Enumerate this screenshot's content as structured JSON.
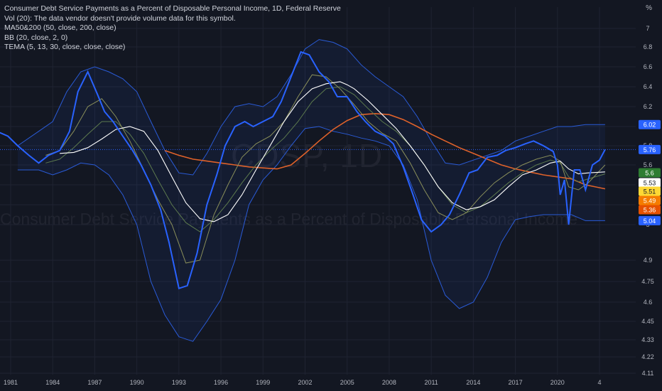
{
  "legend": {
    "title": "Consumer Debt Service Payments as a Percent of Disposable Personal Income, 1D, Federal Reserve",
    "lines": [
      "Vol (20): The data vendor doesn't provide volume data for this symbol.",
      "MA50&200 (50, close, 200, close)",
      "BB (20, close, 2, 0)",
      "TEMA (5, 13, 30, close, close, close)"
    ]
  },
  "unit": "%",
  "watermark": {
    "ticker": "CDSP, 1D",
    "description": "Consumer Debt Service Payments as a Percent of Disposable Personal Income"
  },
  "colors": {
    "background": "#131722",
    "price": "#2962ff",
    "bb_band": "#2a5bd7",
    "bb_fill": "rgba(41,98,255,0.07)",
    "ma50": "#ffffff",
    "ma200": "#e0622a",
    "tema_fast": "#8a8f5a",
    "tema_slow": "#5d7a4e",
    "last_price_line": "#2962ff"
  },
  "chart_data": {
    "type": "line",
    "x_unit": "year",
    "y_unit": "%",
    "ylim": [
      4.11,
      7.15
    ],
    "xlim": [
      1981.0,
      2025.2
    ],
    "x_ticks": [
      "1981",
      "1984",
      "1987",
      "1990",
      "1993",
      "1996",
      "1999",
      "2002",
      "2005",
      "2008",
      "2011",
      "2014",
      "2017",
      "2020",
      "4"
    ],
    "x_tick_values": [
      1981,
      1984,
      1987,
      1990,
      1993,
      1996,
      1999,
      2002,
      2005,
      2008,
      2011,
      2014,
      2017,
      2020,
      2023
    ],
    "y_ticks": [
      "7",
      "6.8",
      "6.6",
      "6.4",
      "6.2",
      "6",
      "5.8",
      "5.6",
      "5.4",
      "5.2",
      "5",
      "4.9",
      "4.75",
      "4.6",
      "4.45",
      "4.33",
      "4.22",
      "4.11"
    ],
    "y_tick_values": [
      7,
      6.8,
      6.6,
      6.4,
      6.2,
      6,
      5.8,
      5.6,
      5.4,
      5.2,
      5,
      4.9,
      4.75,
      4.6,
      4.45,
      4.33,
      4.22,
      4.11
    ],
    "series": [
      {
        "name": "CDSP",
        "role": "price",
        "x": [
          1980.0,
          1980.8,
          1981.5,
          1982.3,
          1983.0,
          1983.7,
          1984.5,
          1985.2,
          1985.8,
          1986.5,
          1987.2,
          1987.7,
          1988.3,
          1989.0,
          1989.7,
          1990.3,
          1991.0,
          1991.7,
          1992.3,
          1993.0,
          1993.6,
          1994.3,
          1995.0,
          1995.7,
          1996.3,
          1997.0,
          1997.7,
          1998.3,
          1999.0,
          1999.7,
          2000.3,
          2001.0,
          2001.7,
          2002.3,
          2003.0,
          2003.7,
          2004.3,
          2005.0,
          2005.7,
          2006.3,
          2007.0,
          2007.7,
          2008.3,
          2009.0,
          2009.7,
          2010.3,
          2011.0,
          2011.7,
          2012.3,
          2013.0,
          2013.7,
          2014.3,
          2015.0,
          2015.7,
          2016.3,
          2017.0,
          2017.7,
          2018.3,
          2019.0,
          2019.7,
          2020.0,
          2020.2,
          2020.5,
          2020.8,
          2021.2,
          2021.6,
          2022.0,
          2022.5,
          2023.0,
          2023.4
        ],
        "y": [
          5.95,
          5.9,
          5.8,
          5.7,
          5.62,
          5.7,
          5.75,
          5.95,
          6.35,
          6.55,
          6.32,
          6.15,
          6.05,
          5.9,
          5.75,
          5.6,
          5.4,
          5.15,
          4.95,
          4.7,
          4.72,
          4.92,
          5.2,
          5.5,
          5.8,
          6.0,
          6.05,
          6.0,
          6.05,
          6.1,
          6.25,
          6.5,
          6.75,
          6.72,
          6.55,
          6.45,
          6.3,
          6.3,
          6.15,
          6.05,
          5.95,
          5.9,
          5.82,
          5.58,
          5.3,
          5.05,
          4.98,
          5.0,
          5.1,
          5.3,
          5.52,
          5.55,
          5.68,
          5.7,
          5.75,
          5.78,
          5.82,
          5.85,
          5.8,
          5.74,
          5.6,
          5.3,
          5.45,
          5.0,
          5.55,
          5.55,
          5.35,
          5.6,
          5.65,
          5.76
        ]
      },
      {
        "name": "BB Upper",
        "role": "band_upper",
        "x": [
          1981.5,
          1983.0,
          1984.0,
          1985.0,
          1986.0,
          1987.0,
          1988.0,
          1989.0,
          1990.0,
          1991.0,
          1992.0,
          1993.0,
          1994.0,
          1995.0,
          1996.0,
          1997.0,
          1998.0,
          1999.0,
          2000.0,
          2001.0,
          2002.0,
          2003.0,
          2004.0,
          2005.0,
          2006.0,
          2007.0,
          2008.0,
          2009.0,
          2010.0,
          2011.0,
          2012.0,
          2013.0,
          2014.0,
          2015.0,
          2016.0,
          2017.0,
          2018.0,
          2019.0,
          2020.0,
          2021.0,
          2022.0,
          2023.4
        ],
        "y": [
          5.8,
          5.95,
          6.05,
          6.35,
          6.55,
          6.6,
          6.55,
          6.48,
          6.35,
          6.05,
          5.75,
          5.52,
          5.5,
          5.72,
          6.0,
          6.2,
          6.23,
          6.2,
          6.3,
          6.52,
          6.78,
          6.88,
          6.85,
          6.78,
          6.62,
          6.5,
          6.4,
          6.3,
          6.1,
          5.85,
          5.62,
          5.6,
          5.65,
          5.7,
          5.75,
          5.85,
          5.9,
          5.95,
          6.0,
          6.0,
          6.02,
          6.02
        ]
      },
      {
        "name": "BB Lower",
        "role": "band_lower",
        "x": [
          1981.5,
          1983.0,
          1984.0,
          1985.0,
          1986.0,
          1987.0,
          1988.0,
          1989.0,
          1990.0,
          1991.0,
          1992.0,
          1993.0,
          1994.0,
          1995.0,
          1996.0,
          1997.0,
          1998.0,
          1999.0,
          2000.0,
          2001.0,
          2002.0,
          2003.0,
          2004.0,
          2005.0,
          2006.0,
          2007.0,
          2008.0,
          2009.0,
          2010.0,
          2011.0,
          2012.0,
          2013.0,
          2014.0,
          2015.0,
          2016.0,
          2017.0,
          2018.0,
          2019.0,
          2020.0,
          2021.0,
          2022.0,
          2023.4
        ],
        "y": [
          5.55,
          5.55,
          5.5,
          5.55,
          5.62,
          5.6,
          5.5,
          5.3,
          5.0,
          4.75,
          4.5,
          4.35,
          4.32,
          4.45,
          4.62,
          4.9,
          5.2,
          5.45,
          5.6,
          5.8,
          5.98,
          6.0,
          5.95,
          5.92,
          5.88,
          5.85,
          5.8,
          5.6,
          5.25,
          4.9,
          4.65,
          4.55,
          4.6,
          4.78,
          4.95,
          5.05,
          5.08,
          5.1,
          5.1,
          5.1,
          5.04,
          5.04
        ]
      },
      {
        "name": "MA50",
        "role": "ma_fast",
        "x": [
          1984.5,
          1985.5,
          1986.5,
          1987.5,
          1988.5,
          1989.5,
          1990.5,
          1991.5,
          1992.5,
          1993.5,
          1994.5,
          1995.5,
          1996.5,
          1997.5,
          1998.5,
          1999.5,
          2000.5,
          2001.5,
          2002.5,
          2003.5,
          2004.5,
          2005.0,
          2005.5,
          2006.5,
          2007.5,
          2008.5,
          2009.5,
          2010.5,
          2011.5,
          2012.5,
          2013.5,
          2014.5,
          2015.5,
          2016.5,
          2017.5,
          2018.5,
          2019.5,
          2020.2,
          2020.8,
          2021.5,
          2022.2,
          2023.4
        ],
        "y": [
          5.72,
          5.73,
          5.78,
          5.87,
          5.97,
          6.0,
          5.95,
          5.75,
          5.48,
          5.22,
          5.06,
          5.03,
          5.1,
          5.3,
          5.55,
          5.8,
          6.05,
          6.25,
          6.38,
          6.43,
          6.45,
          6.42,
          6.38,
          6.26,
          6.12,
          5.98,
          5.8,
          5.6,
          5.38,
          5.22,
          5.15,
          5.18,
          5.25,
          5.38,
          5.5,
          5.55,
          5.62,
          5.64,
          5.56,
          5.51,
          5.52,
          5.53
        ]
      },
      {
        "name": "MA200",
        "role": "ma_slow",
        "x": [
          1992.0,
          1993.0,
          1994.0,
          1995.0,
          1996.0,
          1997.0,
          1998.0,
          1999.0,
          2000.0,
          2001.0,
          2002.0,
          2003.0,
          2004.0,
          2005.0,
          2006.0,
          2007.0,
          2008.0,
          2009.0,
          2010.0,
          2011.0,
          2012.0,
          2013.0,
          2014.0,
          2015.0,
          2016.0,
          2017.0,
          2018.0,
          2019.0,
          2020.0,
          2021.0,
          2022.0,
          2023.4
        ],
        "y": [
          5.75,
          5.7,
          5.66,
          5.64,
          5.62,
          5.6,
          5.58,
          5.57,
          5.56,
          5.6,
          5.72,
          5.85,
          5.97,
          6.06,
          6.12,
          6.13,
          6.12,
          6.07,
          6.0,
          5.92,
          5.85,
          5.78,
          5.72,
          5.66,
          5.6,
          5.56,
          5.53,
          5.5,
          5.48,
          5.46,
          5.4,
          5.36
        ]
      },
      {
        "name": "TEMA 5",
        "role": "tema_a",
        "x": [
          1983.5,
          1984.5,
          1985.5,
          1986.5,
          1987.5,
          1988.5,
          1989.5,
          1990.5,
          1991.5,
          1992.5,
          1993.5,
          1994.5,
          1995.5,
          1996.5,
          1997.5,
          1998.5,
          1999.5,
          2000.5,
          2001.5,
          2002.5,
          2003.5,
          2004.5,
          2005.5,
          2006.5,
          2007.5,
          2008.5,
          2009.5,
          2010.5,
          2011.5,
          2012.5,
          2013.5,
          2014.5,
          2015.5,
          2016.5,
          2017.5,
          2018.5,
          2019.5,
          2020.2,
          2020.8,
          2021.5,
          2022.2,
          2023.4
        ],
        "y": [
          5.7,
          5.75,
          5.95,
          6.2,
          6.28,
          6.1,
          5.85,
          5.55,
          5.25,
          5.0,
          4.88,
          4.9,
          5.1,
          5.4,
          5.68,
          5.82,
          5.9,
          6.05,
          6.3,
          6.52,
          6.5,
          6.38,
          6.22,
          6.05,
          5.93,
          5.85,
          5.62,
          5.35,
          5.12,
          5.05,
          5.12,
          5.28,
          5.42,
          5.52,
          5.6,
          5.66,
          5.7,
          5.64,
          5.38,
          5.35,
          5.42,
          5.6
        ]
      },
      {
        "name": "TEMA 13",
        "role": "tema_b",
        "x": [
          1983.5,
          1984.5,
          1985.5,
          1986.5,
          1987.5,
          1988.5,
          1989.5,
          1990.5,
          1991.5,
          1992.5,
          1993.5,
          1994.5,
          1995.5,
          1996.5,
          1997.5,
          1998.5,
          1999.5,
          2000.5,
          2001.5,
          2002.5,
          2003.5,
          2004.5,
          2005.5,
          2006.5,
          2007.5,
          2008.5,
          2009.5,
          2010.5,
          2011.5,
          2012.5,
          2013.5,
          2014.5,
          2015.5,
          2016.5,
          2017.5,
          2018.5,
          2019.5,
          2020.2,
          2020.8,
          2021.5,
          2022.2,
          2023.4
        ],
        "y": [
          5.62,
          5.66,
          5.78,
          5.92,
          6.05,
          6.05,
          5.92,
          5.72,
          5.45,
          5.2,
          5.02,
          4.98,
          5.05,
          5.22,
          5.42,
          5.6,
          5.75,
          5.88,
          6.05,
          6.25,
          6.38,
          6.4,
          6.32,
          6.18,
          6.05,
          5.95,
          5.8,
          5.6,
          5.38,
          5.2,
          5.12,
          5.18,
          5.3,
          5.42,
          5.52,
          5.6,
          5.65,
          5.62,
          5.48,
          5.43,
          5.46,
          5.51
        ]
      }
    ],
    "price_labels": [
      {
        "text": "6.02",
        "value": 6.02,
        "bg": "#2962ff",
        "fg": "#ffffff"
      },
      {
        "text": "5.76",
        "value": 5.76,
        "bg": "#2962ff",
        "fg": "#ffffff"
      },
      {
        "text": "5.6",
        "value": 5.6,
        "bg": "#2e7d32",
        "fg": "#ffffff"
      },
      {
        "text": "5.53",
        "value": 5.53,
        "bg": "#ffffff",
        "fg": "#131722"
      },
      {
        "text": "5.51",
        "value": 5.51,
        "bg": "#fdd835",
        "fg": "#131722"
      },
      {
        "text": "5.49",
        "value": 5.49,
        "bg": "#f57c00",
        "fg": "#ffffff"
      },
      {
        "text": "5.36",
        "value": 5.36,
        "bg": "#e65100",
        "fg": "#ffffff"
      },
      {
        "text": "5.04",
        "value": 5.04,
        "bg": "#2962ff",
        "fg": "#ffffff"
      }
    ]
  }
}
